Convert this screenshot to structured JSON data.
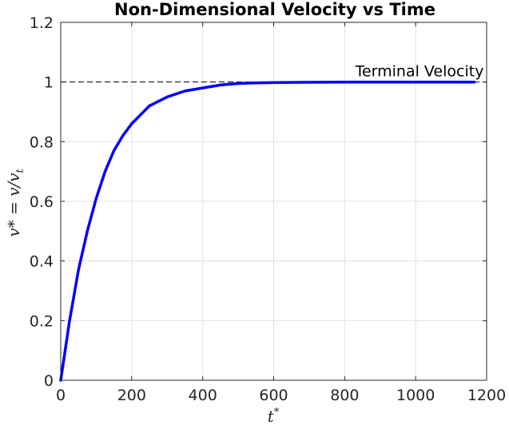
{
  "chart_data": {
    "type": "line",
    "title": "Non-Dimensional Velocity vs Time",
    "xlabel": "t",
    "xlabel_sup": "*",
    "ylabel": "v* = v/v",
    "ylabel_sub": "t",
    "xlim": [
      0,
      1200
    ],
    "ylim": [
      0,
      1.2
    ],
    "xticks": [
      0,
      200,
      400,
      600,
      800,
      1000,
      1200
    ],
    "yticks": [
      0,
      0.2,
      0.4,
      0.6,
      0.8,
      1,
      1.2
    ],
    "xtick_labels": [
      "0",
      "200",
      "400",
      "600",
      "800",
      "1000",
      "1200"
    ],
    "ytick_labels": [
      "0",
      "0.2",
      "0.4",
      "0.6",
      "0.8",
      "1",
      "1.2"
    ],
    "grid": true,
    "series": [
      {
        "color": "#0000ff",
        "x": [
          0,
          25,
          50,
          75,
          100,
          125,
          150,
          175,
          200,
          250,
          300,
          350,
          400,
          450,
          500,
          550,
          600,
          700,
          800,
          900,
          1000,
          1100,
          1165
        ],
        "y": [
          0,
          0.2,
          0.37,
          0.5,
          0.61,
          0.7,
          0.77,
          0.82,
          0.86,
          0.92,
          0.95,
          0.97,
          0.98,
          0.99,
          0.995,
          0.997,
          0.998,
          0.999,
          1.0,
          1.0,
          1.0,
          1.0,
          1.0
        ]
      }
    ],
    "reference_line": {
      "y": 1,
      "style": "dashed",
      "color": "#000000"
    },
    "annotations": [
      {
        "text": "Terminal Velocity",
        "x": 1165,
        "y": 1,
        "anchor": "end"
      }
    ]
  }
}
